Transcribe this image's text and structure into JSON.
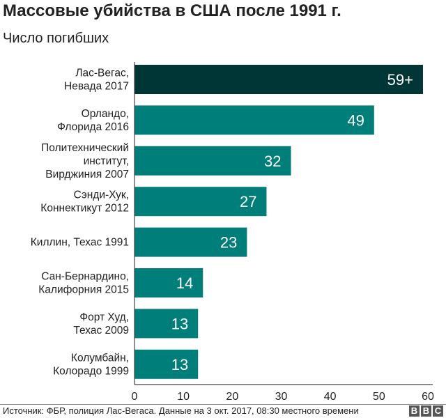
{
  "chart_data": {
    "type": "bar",
    "orientation": "horizontal",
    "title": "Массовые убийства в США после 1991 г.",
    "subtitle": "Число погибших",
    "categories": [
      [
        "Лас-Вегас,",
        "Невада 2017"
      ],
      [
        "Орландо,",
        "Флорида 2016"
      ],
      [
        "Политехнический",
        "институт,",
        "Вирджиния 2007"
      ],
      [
        "Сэнди-Хук,",
        "Коннектикут 2012"
      ],
      [
        "Киллин, Техас 1991"
      ],
      [
        "Сан-Бернардино,",
        "Калифорния 2015"
      ],
      [
        "Форт Худ,",
        "Техас 2009"
      ],
      [
        "Колумбайн,",
        "Колорадо 1999"
      ]
    ],
    "values": [
      59,
      49,
      32,
      27,
      23,
      14,
      13,
      13
    ],
    "data_labels": [
      "59+",
      "49",
      "32",
      "27",
      "23",
      "14",
      "13",
      "13"
    ],
    "highlight_index": 0,
    "xlim": [
      0,
      60
    ],
    "xticks": [
      0,
      10,
      20,
      30,
      40,
      50,
      60
    ],
    "grid": false,
    "colors": {
      "highlight": "#003636",
      "bar": "#007f7a"
    }
  },
  "footer": {
    "source": "Источник: ФБР, полиция Лас-Вегаса. Данные на 3 окт. 2017, 08:30 местного времени",
    "logo": [
      "B",
      "B",
      "C"
    ]
  }
}
